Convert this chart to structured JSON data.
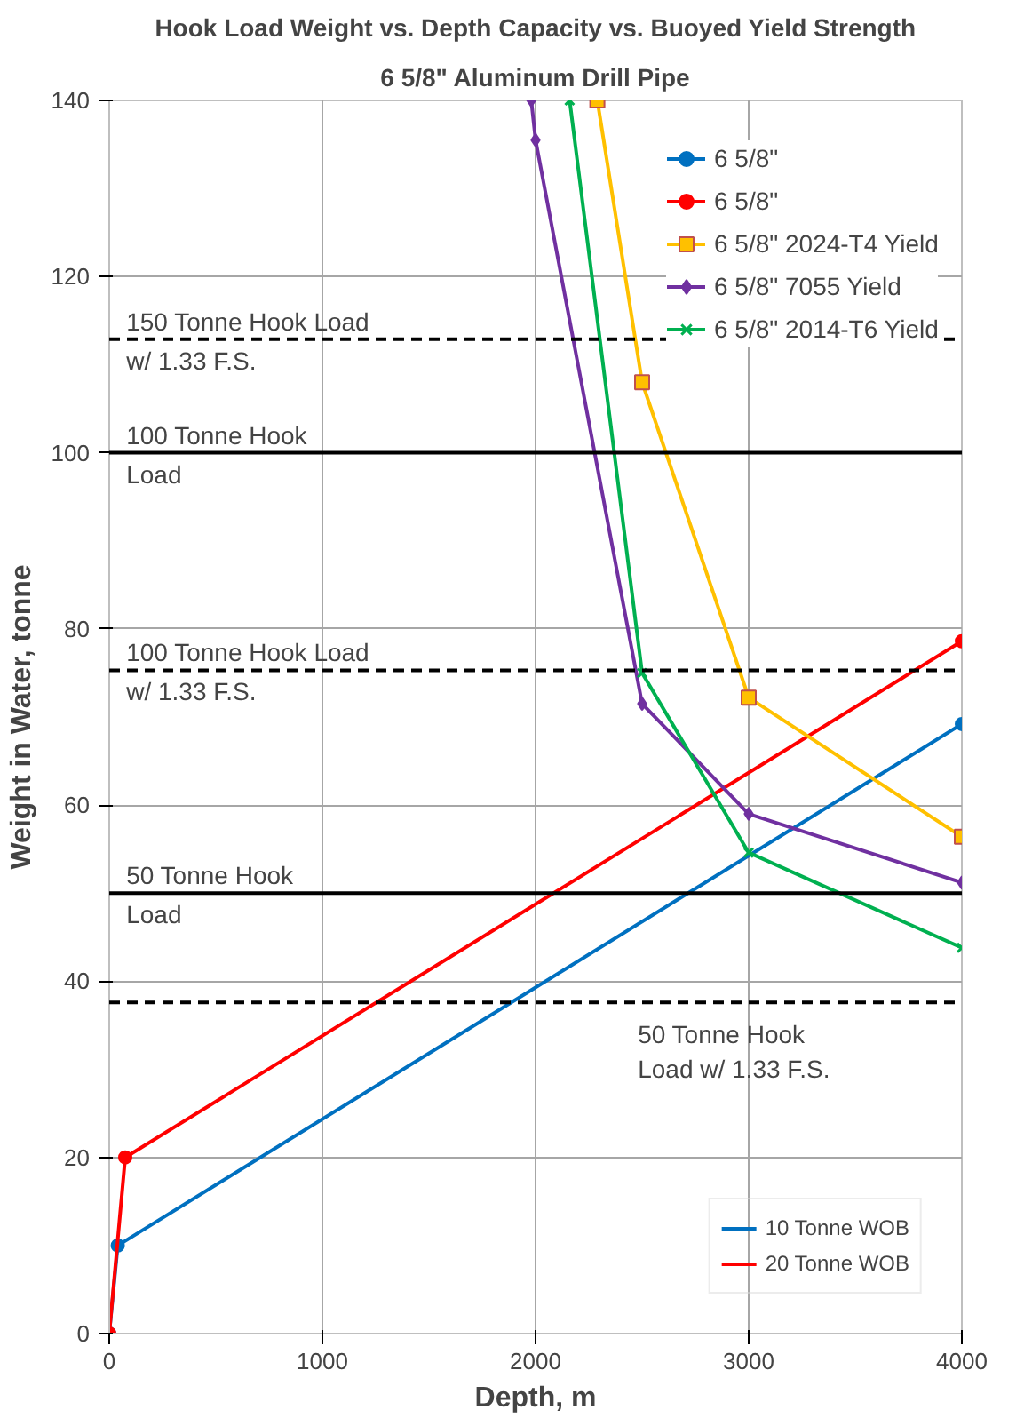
{
  "chart_data": {
    "type": "line",
    "title": "Hook Load Weight vs. Depth Capacity vs. Buoyed Yield Strength",
    "subtitle": "6 5/8\" Aluminum Drill Pipe",
    "xlabel": "Depth, m",
    "ylabel": "Weight in Water, tonne",
    "xlim": [
      0,
      4000
    ],
    "xticks": [
      0,
      1000,
      2000,
      3000,
      4000
    ],
    "ylim": [
      0,
      140
    ],
    "yticks": [
      0,
      20,
      40,
      60,
      80,
      100,
      120,
      140
    ],
    "grid": true,
    "legend": "top right",
    "line_style": "solid",
    "series": [
      {
        "name": "6 5/8\"",
        "color": "#0070c0",
        "marker": "circle",
        "x": [
          0,
          40,
          4000
        ],
        "values": [
          0,
          10,
          69.2
        ]
      },
      {
        "name": "6 5/8\"",
        "color": "#ff0000",
        "marker": "circle",
        "x": [
          0,
          75,
          4000
        ],
        "values": [
          0,
          20,
          78.6
        ]
      },
      {
        "name": "6 5/8\" 2024-T4 Yield",
        "color": "#ffc000",
        "marker": "square",
        "x": [
          2290,
          2500,
          3000,
          4000
        ],
        "values": [
          140,
          108,
          72.2,
          56.4
        ]
      },
      {
        "name": "6 5/8\" 7055 Yield",
        "color": "#7030a0",
        "marker": "diamond",
        "x": [
          1980,
          2000,
          2500,
          3000,
          4000
        ],
        "values": [
          140,
          135.5,
          71.5,
          59,
          51.2
        ]
      },
      {
        "name": "6 5/8\" 2014-T6 Yield",
        "color": "#00b050",
        "marker": "cross",
        "x": [
          2160,
          2500,
          3000,
          4000
        ],
        "values": [
          140,
          75,
          54.6,
          43.8
        ]
      }
    ],
    "ref_lines": [
      {
        "axis": "y",
        "value": 112.9,
        "label": "150 Tonne Hook Load\nw/ 1.33 F.S.",
        "color": "#000000",
        "line_style": "dashed"
      },
      {
        "axis": "y",
        "value": 100,
        "label": "100 Tonne Hook\nLoad",
        "color": "#000000",
        "line_style": "solid"
      },
      {
        "axis": "y",
        "value": 75.3,
        "label": "100 Tonne Hook Load\nw/ 1.33 F.S.",
        "color": "#000000",
        "line_style": "dashed"
      },
      {
        "axis": "y",
        "value": 50,
        "label": "50 Tonne Hook\nLoad",
        "color": "#000000",
        "line_style": "solid"
      },
      {
        "axis": "y",
        "value": 37.6,
        "label": "50 Tonne Hook\nLoad w/ 1.33 F.S.",
        "color": "#000000",
        "line_style": "dashed"
      }
    ],
    "annotations": [
      "10 Tonne WOB",
      "20 Tonne WOB"
    ]
  }
}
